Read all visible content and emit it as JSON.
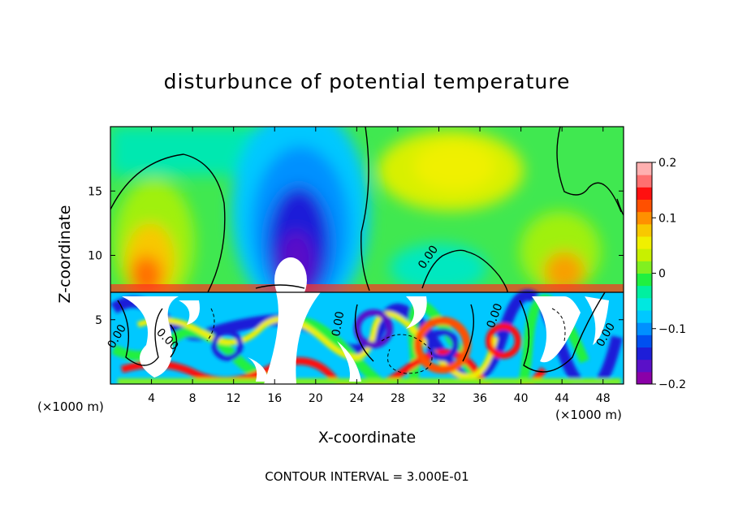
{
  "chart_data": {
    "type": "heatmap",
    "title": "disturbunce of potential temperature",
    "xlabel": "X-coordinate",
    "ylabel": "Z-coordinate",
    "x_unit": "(×1000 m)",
    "x_ticks": [
      4,
      8,
      12,
      16,
      20,
      24,
      28,
      32,
      36,
      40,
      44,
      48
    ],
    "y_ticks": [
      5,
      10,
      15
    ],
    "xlim": [
      0,
      50
    ],
    "ylim": [
      0,
      20
    ],
    "colorbar": {
      "ticks": [
        "0.2",
        "0.1",
        "0",
        "−0.1",
        "−0.2"
      ],
      "range": [
        -0.2,
        0.2
      ],
      "colors": [
        "#8a00a8",
        "#5a10c8",
        "#1e1ed8",
        "#0050f0",
        "#0090ff",
        "#00c8ff",
        "#00e8e0",
        "#00f0a0",
        "#20f040",
        "#80f020",
        "#c8f000",
        "#f0f000",
        "#f8c800",
        "#ff9000",
        "#ff5000",
        "#ff1010",
        "#ff7070",
        "#ffb0b0"
      ]
    },
    "contour_labels": [
      "0.00",
      "0.00",
      "0.00",
      "0.00",
      "0.00",
      "0.00"
    ],
    "contour_interval_text": "CONTOUR INTERVAL = 3.000E-01"
  }
}
